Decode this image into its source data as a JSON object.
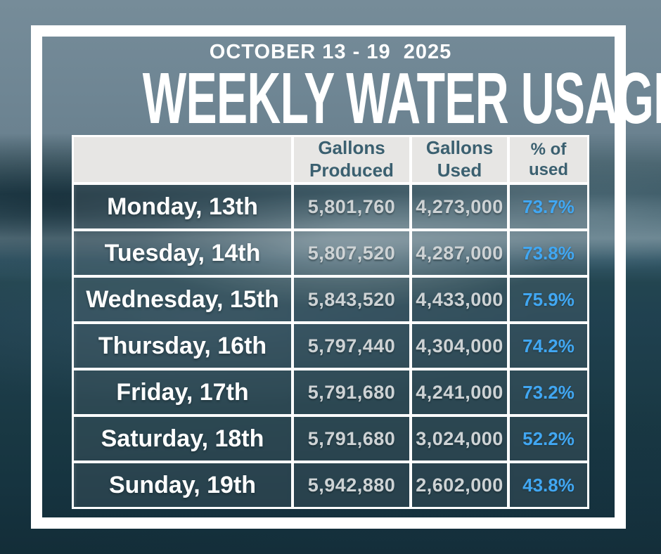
{
  "page": {
    "kicker": "OCTOBER 13 - 19  2025",
    "title": "WEEKLY WATER USAGE"
  },
  "table": {
    "header": {
      "day_label": "",
      "produced_line1": "Gallons",
      "produced_line2": "Produced",
      "used_line1": "Gallons",
      "used_line2": "Used",
      "pct_line1": "% of",
      "pct_line2": "used"
    },
    "rows": [
      {
        "day": "Monday, 13th",
        "produced": "5,801,760",
        "used": "4,273,000",
        "pct": "73.7%"
      },
      {
        "day": "Tuesday, 14th",
        "produced": "5,807,520",
        "used": "4,287,000",
        "pct": "73.8%"
      },
      {
        "day": "Wednesday, 15th",
        "produced": "5,843,520",
        "used": "4,433,000",
        "pct": "75.9%"
      },
      {
        "day": "Thursday, 16th",
        "produced": "5,797,440",
        "used": "4,304,000",
        "pct": "74.2%"
      },
      {
        "day": "Friday, 17th",
        "produced": "5,791,680",
        "used": "4,241,000",
        "pct": "73.2%"
      },
      {
        "day": "Saturday, 18th",
        "produced": "5,791,680",
        "used": "3,024,000",
        "pct": "52.2%"
      },
      {
        "day": "Sunday, 19th",
        "produced": "5,942,880",
        "used": "2,602,000",
        "pct": "43.8%"
      }
    ]
  },
  "colors": {
    "header_bg": "#e7e6e4",
    "header_text": "#3b6070",
    "day_text": "#ffffff",
    "number_text": "#ced3d5",
    "percent_text": "#41a7f2",
    "frame": "#ffffff",
    "water_top": "#6f8694",
    "water_bottom": "#132d38"
  },
  "chart_data": {
    "type": "table",
    "title": "WEEKLY WATER USAGE",
    "subtitle": "OCTOBER 13 - 19 2025",
    "columns": [
      "Day",
      "Gallons Produced",
      "Gallons Used",
      "% of used"
    ],
    "rows": [
      [
        "Monday, 13th",
        5801760,
        4273000,
        73.7
      ],
      [
        "Tuesday, 14th",
        5807520,
        4287000,
        73.8
      ],
      [
        "Wednesday, 15th",
        5843520,
        4433000,
        75.9
      ],
      [
        "Thursday, 16th",
        5797440,
        4304000,
        74.2
      ],
      [
        "Friday, 17th",
        5791680,
        4241000,
        73.2
      ],
      [
        "Saturday, 18th",
        5791680,
        3024000,
        52.2
      ],
      [
        "Sunday, 19th",
        5942880,
        2602000,
        43.8
      ]
    ],
    "units": {
      "Gallons Produced": "gallons",
      "Gallons Used": "gallons",
      "% of used": "percent"
    }
  }
}
